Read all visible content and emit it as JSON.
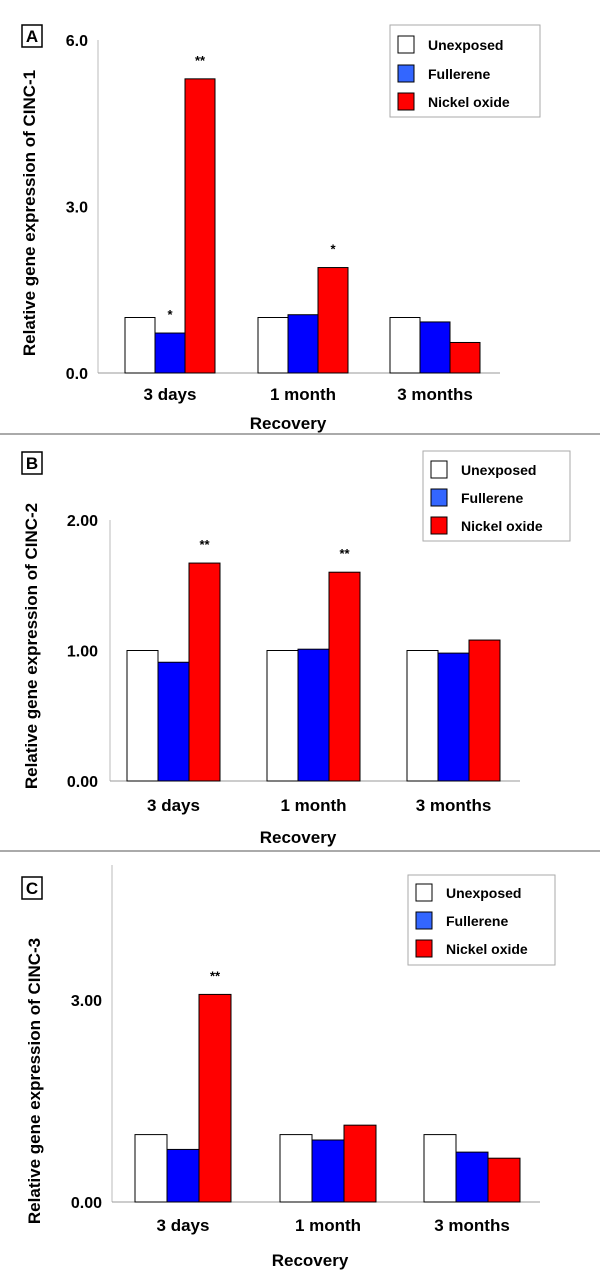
{
  "colors": {
    "unexposed": "#ffffff",
    "fullerene": "#0000ff",
    "nickel_oxide": "#ff0000",
    "fullerene_legend": "#3366ff"
  },
  "chart_data": [
    {
      "type": "bar",
      "panel_label": "A",
      "ylabel": "Relative gene expression of CINC-1",
      "xlabel": "Recovery",
      "categories": [
        "3 days",
        "1 month",
        "3 months"
      ],
      "series": [
        {
          "name": "Unexposed",
          "color_key": "unexposed",
          "values": [
            1.0,
            1.0,
            1.0
          ]
        },
        {
          "name": "Fullerene",
          "color_key": "fullerene",
          "values": [
            0.72,
            1.05,
            0.92
          ]
        },
        {
          "name": "Nickel oxide",
          "color_key": "nickel_oxide",
          "values": [
            5.3,
            1.9,
            0.55
          ]
        }
      ],
      "yticks": [
        0,
        3,
        6
      ],
      "ytick_labels": [
        "0.0",
        "3.0",
        "6.0"
      ],
      "ylim": [
        0,
        6
      ],
      "annotations": [
        {
          "category": 0,
          "series": 1,
          "text": "*"
        },
        {
          "category": 0,
          "series": 2,
          "text": "**"
        },
        {
          "category": 1,
          "series": 2,
          "text": "*"
        }
      ],
      "legend": [
        "Unexposed",
        "Fullerene",
        "Nickel oxide"
      ]
    },
    {
      "type": "bar",
      "panel_label": "B",
      "ylabel": "Relative gene expression of CINC-2",
      "xlabel": "Recovery",
      "categories": [
        "3 days",
        "1 month",
        "3 months"
      ],
      "series": [
        {
          "name": "Unexposed",
          "color_key": "unexposed",
          "values": [
            1.0,
            1.0,
            1.0
          ]
        },
        {
          "name": "Fullerene",
          "color_key": "fullerene",
          "values": [
            0.91,
            1.01,
            0.98
          ]
        },
        {
          "name": "Nickel oxide",
          "color_key": "nickel_oxide",
          "values": [
            1.67,
            1.6,
            1.08
          ]
        }
      ],
      "yticks": [
        0,
        1,
        2
      ],
      "ytick_labels": [
        "0.00",
        "1.00",
        "2.00"
      ],
      "ylim": [
        0,
        2
      ],
      "annotations": [
        {
          "category": 0,
          "series": 2,
          "text": "**"
        },
        {
          "category": 1,
          "series": 2,
          "text": "**"
        }
      ],
      "legend": [
        "Unexposed",
        "Fullerene",
        "Nickel oxide"
      ]
    },
    {
      "type": "bar",
      "panel_label": "C",
      "ylabel": "Relative gene expression of CINC-3",
      "xlabel": "Recovery",
      "categories": [
        "3 days",
        "1 month",
        "3 months"
      ],
      "series": [
        {
          "name": "Unexposed",
          "color_key": "unexposed",
          "values": [
            1.0,
            1.0,
            1.0
          ]
        },
        {
          "name": "Fullerene",
          "color_key": "fullerene",
          "values": [
            0.78,
            0.92,
            0.74
          ]
        },
        {
          "name": "Nickel oxide",
          "color_key": "nickel_oxide",
          "values": [
            3.08,
            1.14,
            0.65
          ]
        }
      ],
      "yticks": [
        0,
        3
      ],
      "ytick_labels": [
        "0.00",
        "3.00"
      ],
      "ylim": [
        0,
        5
      ],
      "annotations": [
        {
          "category": 0,
          "series": 2,
          "text": "**"
        }
      ],
      "legend": [
        "Unexposed",
        "Fullerene",
        "Nickel oxide"
      ]
    }
  ]
}
